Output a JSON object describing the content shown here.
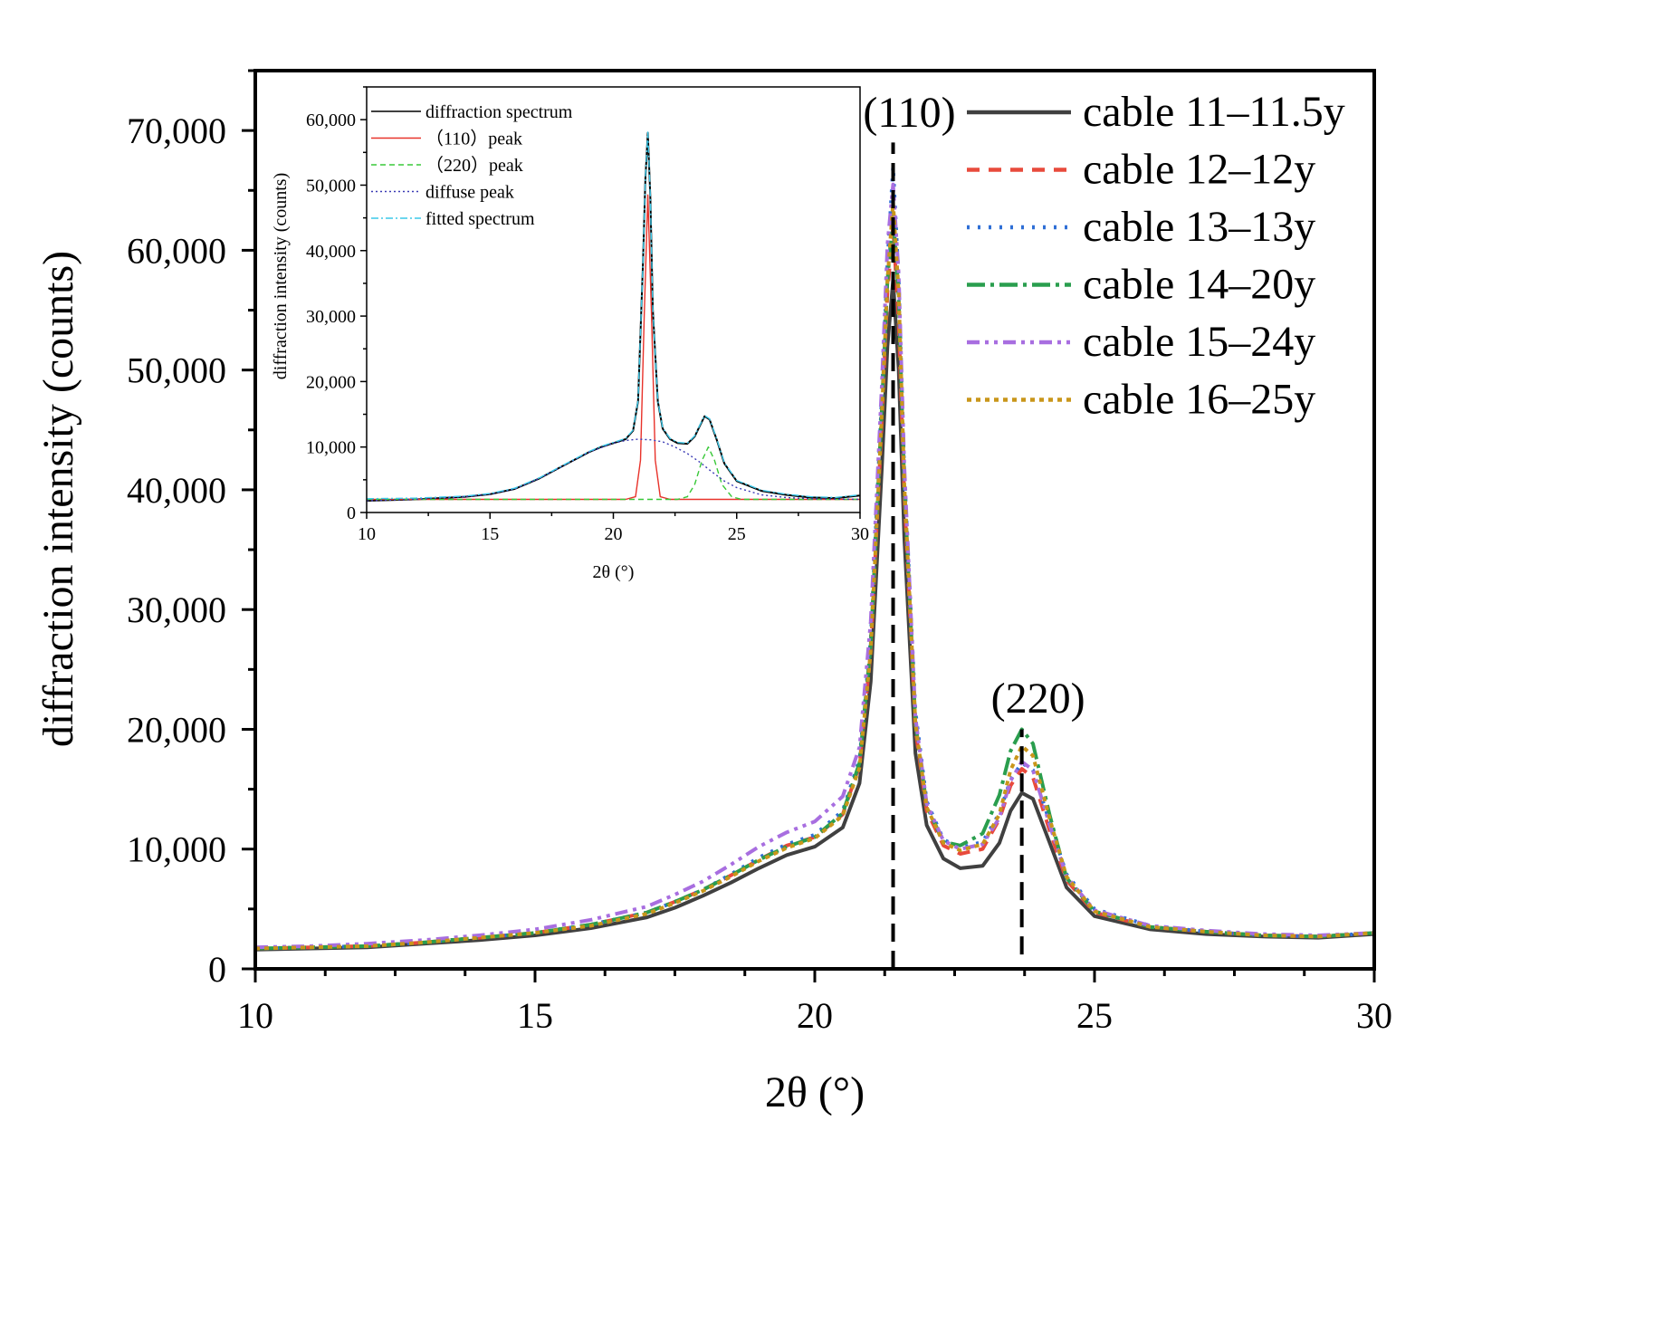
{
  "chart_data": [
    {
      "id": "main",
      "type": "line",
      "title": "",
      "xlabel": "2θ (°)",
      "ylabel": "diffraction intensity (counts)",
      "xlim": [
        10,
        30
      ],
      "ylim": [
        0,
        75000
      ],
      "xticks": [
        10,
        15,
        20,
        25,
        30
      ],
      "yticks": [
        0,
        10000,
        20000,
        30000,
        40000,
        50000,
        60000,
        70000
      ],
      "ytick_labels": [
        "0",
        "10,000",
        "20,000",
        "30,000",
        "40,000",
        "50,000",
        "60,000",
        "70,000"
      ],
      "grid": false,
      "legend_position": "top-right",
      "annotations": [
        {
          "text": "(110)",
          "x": 21.4,
          "y": 70300
        },
        {
          "text": "(220)",
          "x": 23.7,
          "y": 21400
        }
      ],
      "reference_lines": [
        {
          "x": 21.4,
          "y_from": 0,
          "y_to": 69000
        },
        {
          "x": 23.7,
          "y_from": 1200,
          "y_to": 20000
        }
      ],
      "x": [
        10,
        11,
        12,
        13,
        14,
        15,
        16,
        17,
        17.5,
        18,
        18.5,
        19,
        19.5,
        20,
        20.5,
        20.8,
        21,
        21.2,
        21.3,
        21.4,
        21.5,
        21.6,
        21.8,
        22,
        22.3,
        22.6,
        23,
        23.3,
        23.5,
        23.7,
        23.9,
        24.2,
        24.5,
        25,
        26,
        27,
        28,
        29,
        30
      ],
      "series": [
        {
          "name": "cable 11–11.5y",
          "color": "#404040",
          "dash": "solid",
          "values": [
            1600,
            1700,
            1800,
            2100,
            2400,
            2800,
            3400,
            4300,
            5100,
            6100,
            7200,
            8400,
            9500,
            10200,
            11800,
            15500,
            24000,
            42000,
            52000,
            57500,
            50000,
            36000,
            18000,
            12000,
            9200,
            8400,
            8600,
            10500,
            13200,
            14700,
            14200,
            10500,
            6800,
            4400,
            3300,
            2900,
            2700,
            2600,
            2900
          ]
        },
        {
          "name": "cable 12–12y",
          "color": "#e84a3c",
          "dash": "14,10",
          "values": [
            1700,
            1800,
            1900,
            2200,
            2600,
            3000,
            3700,
            4700,
            5600,
            6600,
            7800,
            9100,
            10300,
            11000,
            12900,
            17000,
            26500,
            46000,
            56500,
            62000,
            54000,
            39500,
            20000,
            13200,
            10300,
            9600,
            10000,
            12500,
            15300,
            16700,
            16000,
            11500,
            7400,
            4700,
            3500,
            3100,
            2800,
            2700,
            3000
          ]
        },
        {
          "name": "cable 13–13y",
          "color": "#2f6fd6",
          "dash": "3,9",
          "values": [
            1700,
            1800,
            1900,
            2200,
            2600,
            3000,
            3700,
            4700,
            5600,
            6600,
            7900,
            9300,
            10400,
            11200,
            13200,
            17500,
            27500,
            48000,
            59000,
            67000,
            57500,
            41500,
            21500,
            14000,
            10800,
            10100,
            10600,
            13000,
            15800,
            17200,
            16600,
            12200,
            7900,
            5000,
            3600,
            3100,
            2800,
            2700,
            3000
          ]
        },
        {
          "name": "cable 14–20y",
          "color": "#2a9e4e",
          "dash": "20,6,4,6",
          "values": [
            1700,
            1800,
            1900,
            2200,
            2600,
            3000,
            3700,
            4700,
            5600,
            6600,
            7800,
            9100,
            10200,
            11000,
            13000,
            17200,
            27000,
            47000,
            57500,
            63000,
            56000,
            40500,
            20500,
            13600,
            10600,
            10300,
            11300,
            14500,
            18200,
            20000,
            18800,
            12800,
            7600,
            4800,
            3500,
            3100,
            2800,
            2700,
            3000
          ]
        },
        {
          "name": "cable 15–24y",
          "color": "#a86ee0",
          "dash": "14,6,4,6,4,6",
          "values": [
            1800,
            1900,
            2100,
            2400,
            2800,
            3300,
            4100,
            5200,
            6200,
            7300,
            8700,
            10200,
            11400,
            12300,
            14400,
            18500,
            29000,
            49000,
            60500,
            65500,
            58000,
            42000,
            21000,
            13800,
            10700,
            10000,
            10400,
            12600,
            15700,
            17300,
            16600,
            12000,
            7700,
            4900,
            3600,
            3200,
            2900,
            2800,
            3000
          ]
        },
        {
          "name": "cable 16–25y",
          "color": "#c9961a",
          "dash": "5,5",
          "values": [
            1700,
            1800,
            1900,
            2200,
            2600,
            3000,
            3600,
            4600,
            5500,
            6500,
            7700,
            9000,
            10100,
            10900,
            12800,
            16800,
            26500,
            46500,
            57500,
            64000,
            56500,
            40500,
            20500,
            13500,
            10500,
            9900,
            10400,
            12900,
            16600,
            18600,
            17800,
            12500,
            7700,
            4800,
            3500,
            3100,
            2800,
            2700,
            3000
          ]
        }
      ]
    },
    {
      "id": "inset",
      "type": "line",
      "title": "",
      "xlabel": "2θ (°)",
      "ylabel": "diffraction intensity (counts)",
      "xlim": [
        10,
        30
      ],
      "ylim": [
        0,
        65000
      ],
      "xticks": [
        10,
        15,
        20,
        25,
        30
      ],
      "yticks": [
        0,
        10000,
        20000,
        30000,
        40000,
        50000,
        60000
      ],
      "ytick_labels": [
        "0",
        "10,000",
        "20,000",
        "30,000",
        "40,000",
        "50,000",
        "60,000"
      ],
      "grid": false,
      "legend_position": "top-left",
      "series": [
        {
          "name": "diffraction spectrum",
          "color": "#000000",
          "dash": "solid",
          "x": [
            10,
            12,
            14,
            15,
            16,
            17,
            18,
            19,
            19.5,
            20,
            20.5,
            20.8,
            21,
            21.2,
            21.3,
            21.4,
            21.5,
            21.6,
            21.8,
            22,
            22.3,
            22.6,
            23,
            23.3,
            23.5,
            23.7,
            23.9,
            24.2,
            24.5,
            25,
            26,
            27,
            28,
            29,
            30
          ],
          "values": [
            1800,
            2000,
            2400,
            2800,
            3600,
            5200,
            7200,
            9200,
            10000,
            10600,
            11200,
            12500,
            17000,
            38000,
            51000,
            58000,
            48000,
            31000,
            17000,
            12800,
            11200,
            10600,
            10500,
            11600,
            13200,
            14700,
            14200,
            11000,
            7500,
            4800,
            3300,
            2700,
            2300,
            2200,
            2600
          ]
        },
        {
          "name": "(110) peak",
          "label": "（110）peak",
          "color": "#e8322a",
          "dash": "solid",
          "x": [
            10,
            20.5,
            20.9,
            21.1,
            21.25,
            21.4,
            21.55,
            21.7,
            21.9,
            22.3,
            30
          ],
          "values": [
            2000,
            2000,
            2400,
            8000,
            30000,
            48500,
            30000,
            8000,
            2400,
            2000,
            2000
          ]
        },
        {
          "name": "(220) peak",
          "label": "（220）peak",
          "color": "#38c838",
          "dash": "6,4",
          "x": [
            10,
            22.6,
            23.0,
            23.3,
            23.6,
            23.85,
            24.1,
            24.4,
            24.8,
            25.2,
            30
          ],
          "values": [
            2000,
            2000,
            2400,
            4300,
            8000,
            10000,
            8000,
            4300,
            2400,
            2000,
            2000
          ]
        },
        {
          "name": "diffuse peak",
          "color": "#3a3ab4",
          "dash": "2,3",
          "x": [
            10,
            12,
            14,
            15,
            16,
            17,
            18,
            19,
            20,
            20.5,
            21,
            21.5,
            22,
            22.5,
            23,
            23.5,
            24,
            24.5,
            25,
            26,
            27,
            28,
            30
          ],
          "values": [
            1800,
            2000,
            2400,
            2800,
            3600,
            5200,
            7200,
            9200,
            10600,
            11000,
            11200,
            11100,
            10800,
            10000,
            9000,
            7700,
            6200,
            4800,
            3800,
            2700,
            2300,
            2100,
            2000
          ]
        },
        {
          "name": "fitted spectrum",
          "color": "#3cc8e8",
          "dash": "8,3,2,3",
          "x": [
            10,
            12,
            14,
            15,
            16,
            17,
            18,
            19,
            19.5,
            20,
            20.5,
            20.8,
            21,
            21.2,
            21.3,
            21.4,
            21.5,
            21.6,
            21.8,
            22,
            22.3,
            22.6,
            23,
            23.3,
            23.5,
            23.7,
            23.9,
            24.2,
            24.5,
            25,
            26,
            27,
            28,
            29,
            30
          ],
          "values": [
            2100,
            2200,
            2500,
            2900,
            3700,
            5300,
            7300,
            9300,
            10100,
            10700,
            11300,
            12600,
            17100,
            38100,
            51100,
            58100,
            48100,
            31100,
            17100,
            12900,
            11300,
            10700,
            10600,
            11700,
            13300,
            14800,
            14300,
            11100,
            7600,
            4900,
            3400,
            2800,
            2400,
            2300,
            2700
          ]
        }
      ]
    }
  ]
}
